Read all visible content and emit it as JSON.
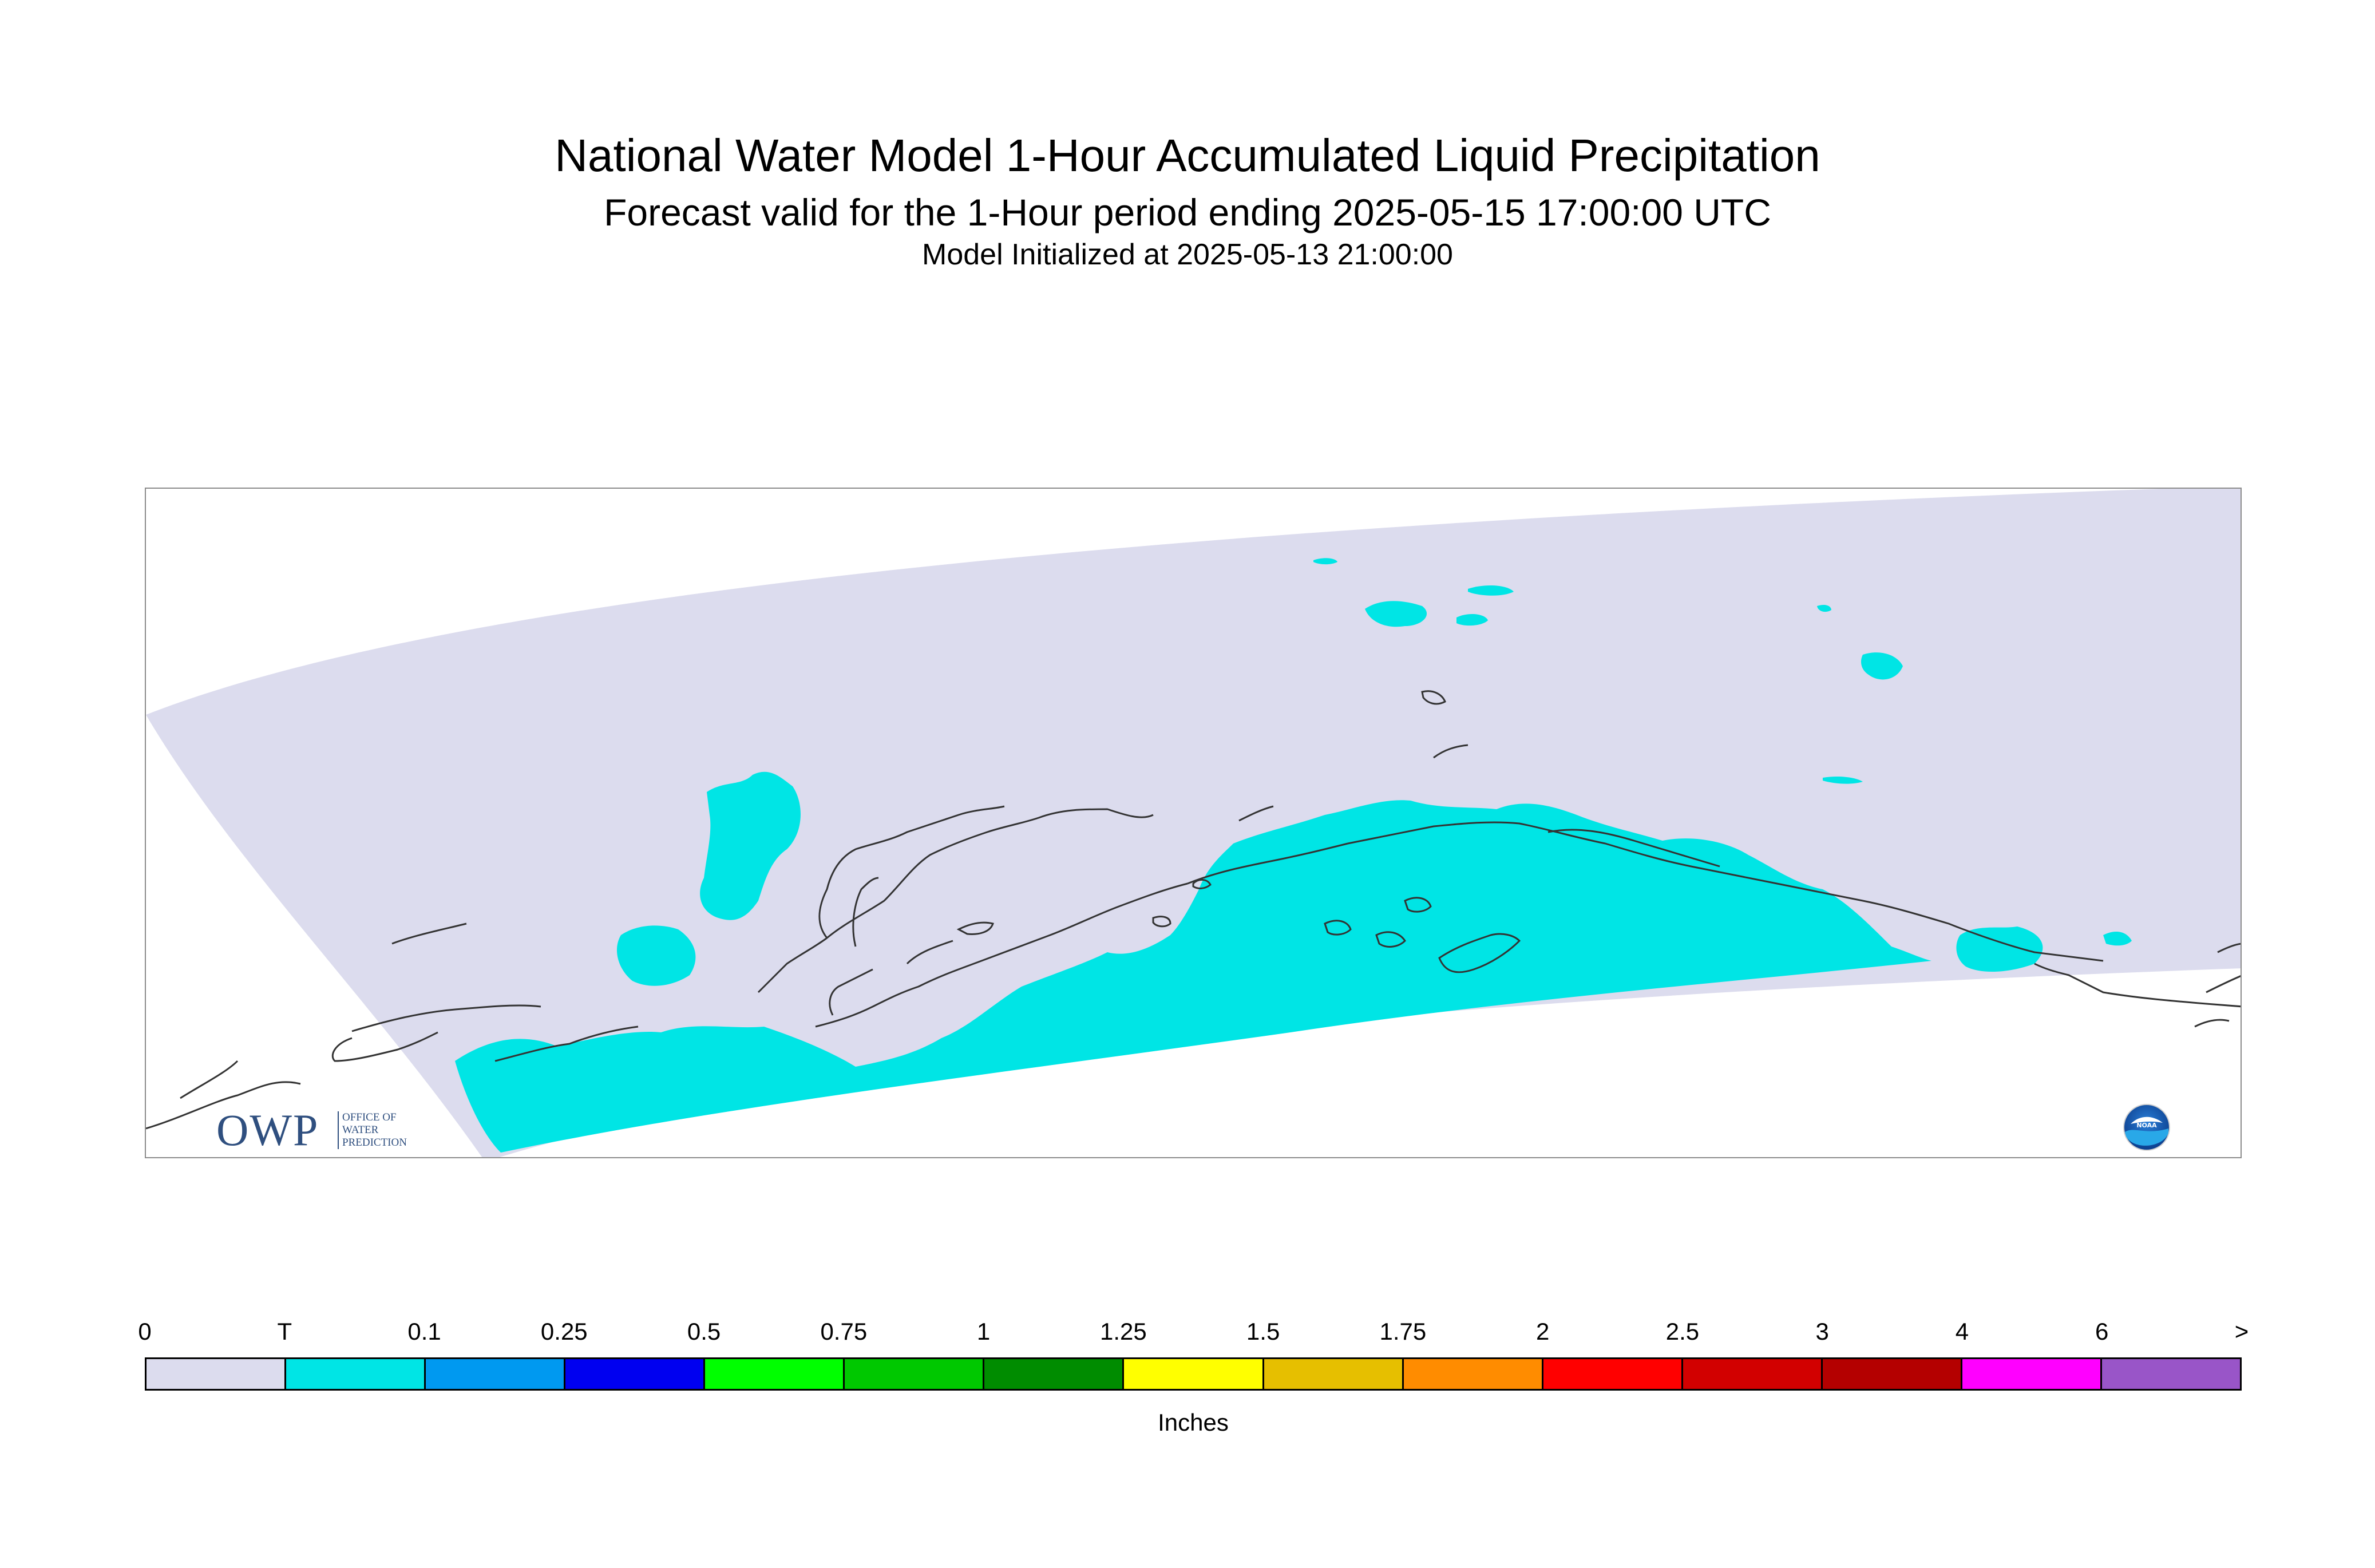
{
  "title": "National Water Model 1-Hour Accumulated Liquid Precipitation",
  "subtitle": "Forecast valid for the 1-Hour period ending 2025-05-15 17:00:00 UTC",
  "initialized": "Model Initialized at 2025-05-13 21:00:00",
  "logos": {
    "owp_mark": "OWP",
    "owp_text": [
      "OFFICE OF",
      "WATER",
      "PREDICTION"
    ],
    "noaa_text": "NOAA"
  },
  "colors": {
    "domain_fill": "#dcdcee",
    "trace_fill": "#00e5e5",
    "coastline": "#333333",
    "frame": "#8c8c8c"
  },
  "legend": {
    "units": "Inches",
    "tick_labels": [
      "0",
      "T",
      "0.1",
      "0.25",
      "0.5",
      "0.75",
      "1",
      "1.25",
      "1.5",
      "1.75",
      "2",
      "2.5",
      "3",
      "4",
      "6",
      ">"
    ],
    "bins": [
      {
        "color": "#dcdcee"
      },
      {
        "color": "#00e5e5"
      },
      {
        "color": "#0099f0"
      },
      {
        "color": "#0000f0"
      },
      {
        "color": "#00ff00"
      },
      {
        "color": "#00c800"
      },
      {
        "color": "#008c00"
      },
      {
        "color": "#ffff00"
      },
      {
        "color": "#e6bf00"
      },
      {
        "color": "#ff8c00"
      },
      {
        "color": "#ff0000"
      },
      {
        "color": "#d20000"
      },
      {
        "color": "#b40000"
      },
      {
        "color": "#ff00ff"
      },
      {
        "color": "#9955c8"
      }
    ]
  }
}
